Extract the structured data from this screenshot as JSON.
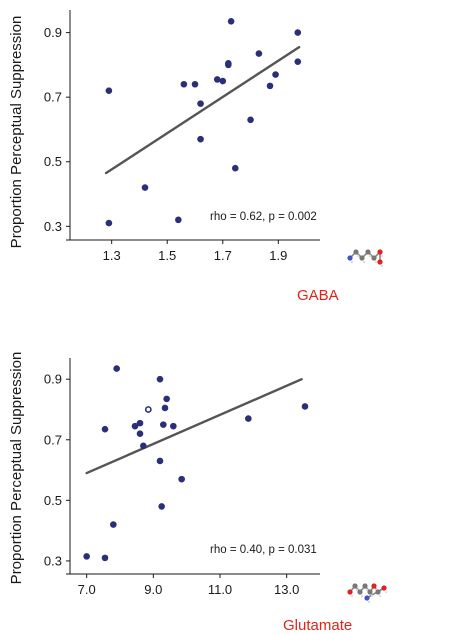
{
  "chart_data": [
    {
      "type": "scatter",
      "title": "",
      "xlabel": "",
      "ylabel": "Proportion Perceptual Suppression",
      "xlim": [
        1.15,
        2.05
      ],
      "ylim": [
        0.27,
        0.97
      ],
      "xticks": [
        "1.3",
        "1.5",
        "1.7",
        "1.9"
      ],
      "yticks": [
        "0.3",
        "0.5",
        "0.7",
        "0.9"
      ],
      "xtick_values": [
        1.3,
        1.5,
        1.7,
        1.9
      ],
      "ytick_values": [
        0.3,
        0.5,
        0.7,
        0.9
      ],
      "stats_annotation": "rho = 0.62, p = 0.002",
      "molecule_label": "GABA",
      "molecule_icon": "gaba-molecule-icon",
      "point_color": "#2b2f7a",
      "line_color": "#555555",
      "label_color": "#e2231a",
      "points": [
        {
          "x": 1.29,
          "y": 0.72,
          "open": false
        },
        {
          "x": 1.29,
          "y": 0.31,
          "open": false
        },
        {
          "x": 1.42,
          "y": 0.42,
          "open": false
        },
        {
          "x": 1.54,
          "y": 0.32,
          "open": false
        },
        {
          "x": 1.56,
          "y": 0.74,
          "open": false
        },
        {
          "x": 1.6,
          "y": 0.74,
          "open": false
        },
        {
          "x": 1.62,
          "y": 0.68,
          "open": false
        },
        {
          "x": 1.62,
          "y": 0.57,
          "open": false
        },
        {
          "x": 1.68,
          "y": 0.755,
          "open": false
        },
        {
          "x": 1.7,
          "y": 0.75,
          "open": false
        },
        {
          "x": 1.72,
          "y": 0.805,
          "open": false
        },
        {
          "x": 1.72,
          "y": 0.8,
          "open": false
        },
        {
          "x": 1.73,
          "y": 0.935,
          "open": false
        },
        {
          "x": 1.745,
          "y": 0.48,
          "open": false
        },
        {
          "x": 1.8,
          "y": 0.63,
          "open": false
        },
        {
          "x": 1.83,
          "y": 0.835,
          "open": false
        },
        {
          "x": 1.87,
          "y": 0.735,
          "open": false
        },
        {
          "x": 1.89,
          "y": 0.77,
          "open": false
        },
        {
          "x": 1.97,
          "y": 0.9,
          "open": false
        },
        {
          "x": 1.97,
          "y": 0.81,
          "open": false
        }
      ],
      "fit_line": {
        "x": [
          1.28,
          1.975
        ],
        "y": [
          0.465,
          0.855
        ]
      }
    },
    {
      "type": "scatter",
      "title": "",
      "xlabel": "",
      "ylabel": "Proportion Perceptual Suppression",
      "xlim": [
        6.5,
        14.0
      ],
      "ylim": [
        0.27,
        0.97
      ],
      "xticks": [
        "7.0",
        "9.0",
        "11.0",
        "13.0"
      ],
      "yticks": [
        "0.3",
        "0.5",
        "0.7",
        "0.9"
      ],
      "xtick_values": [
        7.0,
        9.0,
        11.0,
        13.0
      ],
      "ytick_values": [
        0.3,
        0.5,
        0.7,
        0.9
      ],
      "stats_annotation": "rho = 0.40, p = 0.031",
      "molecule_label": "Glutamate",
      "molecule_icon": "glutamate-molecule-icon",
      "point_color": "#2b2f7a",
      "line_color": "#555555",
      "label_color": "#e2231a",
      "points": [
        {
          "x": 7.0,
          "y": 0.315,
          "open": false
        },
        {
          "x": 7.55,
          "y": 0.31,
          "open": false
        },
        {
          "x": 7.55,
          "y": 0.735,
          "open": false
        },
        {
          "x": 7.8,
          "y": 0.42,
          "open": false
        },
        {
          "x": 7.9,
          "y": 0.935,
          "open": false
        },
        {
          "x": 8.45,
          "y": 0.745,
          "open": false
        },
        {
          "x": 8.6,
          "y": 0.72,
          "open": false
        },
        {
          "x": 8.6,
          "y": 0.755,
          "open": false
        },
        {
          "x": 8.7,
          "y": 0.68,
          "open": false
        },
        {
          "x": 8.85,
          "y": 0.8,
          "open": true
        },
        {
          "x": 9.2,
          "y": 0.9,
          "open": false
        },
        {
          "x": 9.2,
          "y": 0.63,
          "open": false
        },
        {
          "x": 9.25,
          "y": 0.48,
          "open": false
        },
        {
          "x": 9.3,
          "y": 0.75,
          "open": false
        },
        {
          "x": 9.35,
          "y": 0.805,
          "open": false
        },
        {
          "x": 9.4,
          "y": 0.835,
          "open": false
        },
        {
          "x": 9.6,
          "y": 0.745,
          "open": false
        },
        {
          "x": 9.85,
          "y": 0.57,
          "open": false
        },
        {
          "x": 11.85,
          "y": 0.77,
          "open": false
        },
        {
          "x": 13.55,
          "y": 0.81,
          "open": false
        }
      ],
      "fit_line": {
        "x": [
          7.0,
          13.45
        ],
        "y": [
          0.59,
          0.9
        ]
      }
    }
  ]
}
